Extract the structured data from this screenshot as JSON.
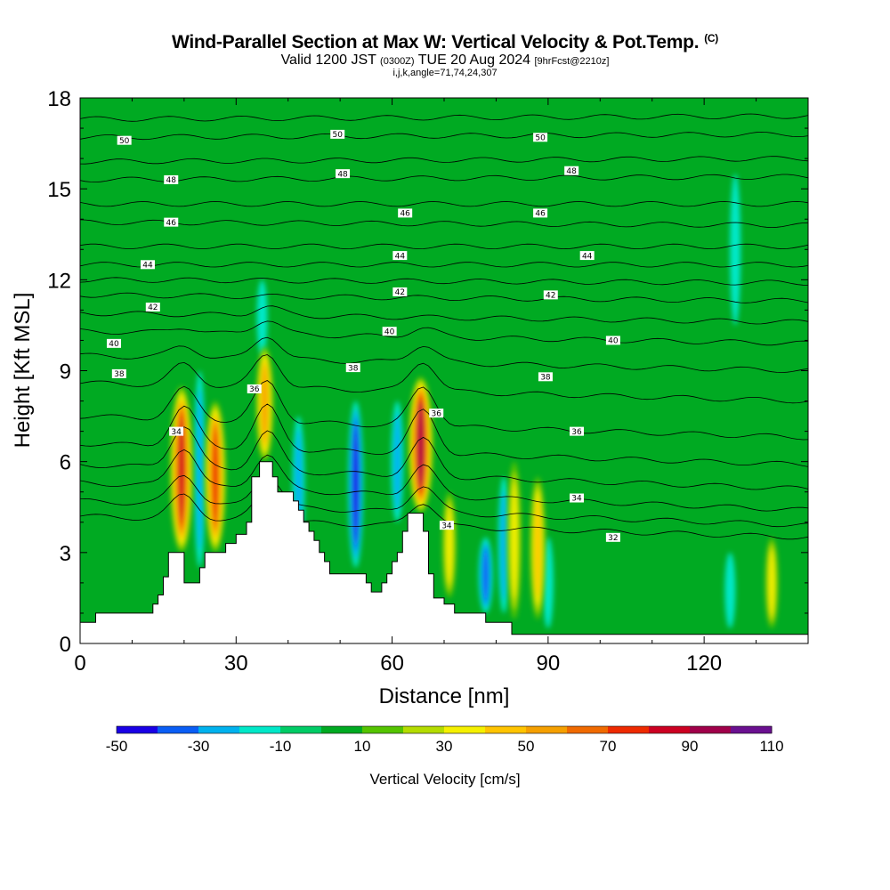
{
  "title": {
    "main": "Wind-Parallel Section at Max W: Vertical Velocity & Pot.Temp.",
    "main_unit": "(C)",
    "valid_prefix": "Valid 1200 JST",
    "valid_zulu": "(0300Z)",
    "valid_date": "TUE 20 Aug 2024",
    "forecast": "[9hrFcst@2210z]",
    "indices": "i,j,k,angle=71,74,24,307"
  },
  "chart_data": {
    "type": "heatmap",
    "xlabel": "Distance [nm]",
    "ylabel": "Height [Kft MSL]",
    "xlim": [
      0,
      140
    ],
    "ylim": [
      0,
      18
    ],
    "x_ticks": [
      "0",
      "30",
      "60",
      "90",
      "120"
    ],
    "x_tick_values": [
      0,
      30,
      60,
      90,
      120
    ],
    "y_ticks": [
      "0",
      "3",
      "6",
      "9",
      "12",
      "15",
      "18"
    ],
    "y_tick_values": [
      0,
      3,
      6,
      9,
      12,
      15,
      18
    ],
    "background_value": 5,
    "updrafts": [
      {
        "x": 19.5,
        "z_bottom": 3.0,
        "z_top": 8.5,
        "peak": 90
      },
      {
        "x": 26.0,
        "z_bottom": 3.0,
        "z_top": 8.0,
        "peak": 80
      },
      {
        "x": 35.5,
        "z_bottom": 6.0,
        "z_top": 9.8,
        "peak": 60
      },
      {
        "x": 65.5,
        "z_bottom": 4.3,
        "z_top": 8.8,
        "peak": 100
      },
      {
        "x": 71.0,
        "z_bottom": 1.5,
        "z_top": 5.0,
        "peak": 40
      },
      {
        "x": 83.5,
        "z_bottom": 0.8,
        "z_top": 6.0,
        "peak": 40
      },
      {
        "x": 88.0,
        "z_bottom": 0.8,
        "z_top": 5.5,
        "peak": 50
      },
      {
        "x": 133.0,
        "z_bottom": 0.5,
        "z_top": 3.5,
        "peak": 35
      }
    ],
    "downdrafts": [
      {
        "x": 23.0,
        "z_bottom": 2.5,
        "z_top": 9.0,
        "peak": -25
      },
      {
        "x": 35.0,
        "z_bottom": 9.5,
        "z_top": 12.0,
        "peak": -20
      },
      {
        "x": 42.0,
        "z_bottom": 3.0,
        "z_top": 7.5,
        "peak": -30
      },
      {
        "x": 53.0,
        "z_bottom": 2.5,
        "z_top": 8.0,
        "peak": -45
      },
      {
        "x": 61.0,
        "z_bottom": 4.0,
        "z_top": 8.0,
        "peak": -30
      },
      {
        "x": 78.0,
        "z_bottom": 1.0,
        "z_top": 3.5,
        "peak": -40
      },
      {
        "x": 81.5,
        "z_bottom": 1.0,
        "z_top": 5.5,
        "peak": -25
      },
      {
        "x": 90.0,
        "z_bottom": 0.5,
        "z_top": 3.5,
        "peak": -15
      },
      {
        "x": 125.0,
        "z_bottom": 0.5,
        "z_top": 3.0,
        "peak": -15
      },
      {
        "x": 126.0,
        "z_bottom": 10.5,
        "z_top": 15.5,
        "peak": -15
      }
    ],
    "terrain": [
      {
        "x": 0,
        "z": 0.7
      },
      {
        "x": 3,
        "z": 0.7
      },
      {
        "x": 3,
        "z": 1.0
      },
      {
        "x": 14,
        "z": 1.0
      },
      {
        "x": 14,
        "z": 1.3
      },
      {
        "x": 15,
        "z": 1.3
      },
      {
        "x": 15,
        "z": 1.6
      },
      {
        "x": 16,
        "z": 1.6
      },
      {
        "x": 16,
        "z": 2.2
      },
      {
        "x": 17,
        "z": 2.2
      },
      {
        "x": 17,
        "z": 3.0
      },
      {
        "x": 20,
        "z": 3.0
      },
      {
        "x": 20,
        "z": 2.0
      },
      {
        "x": 23,
        "z": 2.0
      },
      {
        "x": 23,
        "z": 2.5
      },
      {
        "x": 24,
        "z": 2.5
      },
      {
        "x": 24,
        "z": 3.0
      },
      {
        "x": 28,
        "z": 3.0
      },
      {
        "x": 28,
        "z": 3.3
      },
      {
        "x": 30,
        "z": 3.3
      },
      {
        "x": 30,
        "z": 3.6
      },
      {
        "x": 32,
        "z": 3.6
      },
      {
        "x": 32,
        "z": 4.0
      },
      {
        "x": 33,
        "z": 4.0
      },
      {
        "x": 33,
        "z": 5.5
      },
      {
        "x": 34.5,
        "z": 5.5
      },
      {
        "x": 34.5,
        "z": 6.0
      },
      {
        "x": 37,
        "z": 6.0
      },
      {
        "x": 37,
        "z": 5.5
      },
      {
        "x": 38,
        "z": 5.5
      },
      {
        "x": 38,
        "z": 5.0
      },
      {
        "x": 41,
        "z": 5.0
      },
      {
        "x": 41,
        "z": 4.7
      },
      {
        "x": 42,
        "z": 4.7
      },
      {
        "x": 42,
        "z": 4.4
      },
      {
        "x": 43,
        "z": 4.4
      },
      {
        "x": 43,
        "z": 4.0
      },
      {
        "x": 44,
        "z": 4.0
      },
      {
        "x": 44,
        "z": 3.7
      },
      {
        "x": 45,
        "z": 3.7
      },
      {
        "x": 45,
        "z": 3.4
      },
      {
        "x": 46,
        "z": 3.4
      },
      {
        "x": 46,
        "z": 3.0
      },
      {
        "x": 47,
        "z": 3.0
      },
      {
        "x": 47,
        "z": 2.7
      },
      {
        "x": 48,
        "z": 2.7
      },
      {
        "x": 48,
        "z": 2.3
      },
      {
        "x": 55,
        "z": 2.3
      },
      {
        "x": 55,
        "z": 2.0
      },
      {
        "x": 56,
        "z": 2.0
      },
      {
        "x": 56,
        "z": 1.7
      },
      {
        "x": 58,
        "z": 1.7
      },
      {
        "x": 58,
        "z": 2.0
      },
      {
        "x": 59,
        "z": 2.0
      },
      {
        "x": 59,
        "z": 2.3
      },
      {
        "x": 60,
        "z": 2.3
      },
      {
        "x": 60,
        "z": 2.7
      },
      {
        "x": 61,
        "z": 2.7
      },
      {
        "x": 61,
        "z": 3.0
      },
      {
        "x": 62,
        "z": 3.0
      },
      {
        "x": 62,
        "z": 3.7
      },
      {
        "x": 63,
        "z": 3.7
      },
      {
        "x": 63,
        "z": 4.3
      },
      {
        "x": 66,
        "z": 4.3
      },
      {
        "x": 66,
        "z": 3.7
      },
      {
        "x": 67,
        "z": 3.7
      },
      {
        "x": 67,
        "z": 2.3
      },
      {
        "x": 68,
        "z": 2.3
      },
      {
        "x": 68,
        "z": 1.5
      },
      {
        "x": 70,
        "z": 1.5
      },
      {
        "x": 70,
        "z": 1.3
      },
      {
        "x": 72,
        "z": 1.3
      },
      {
        "x": 72,
        "z": 1.0
      },
      {
        "x": 78,
        "z": 1.0
      },
      {
        "x": 78,
        "z": 0.7
      },
      {
        "x": 83,
        "z": 0.7
      },
      {
        "x": 83,
        "z": 0.3
      },
      {
        "x": 140,
        "z": 0.3
      }
    ],
    "isentropes": [
      {
        "value": 32,
        "z_left": 4.2,
        "z_right": 3.5,
        "bumps": [
          [
            20,
            0.8
          ],
          [
            36,
            1.0
          ],
          [
            66,
            0.8
          ]
        ]
      },
      {
        "value": 33,
        "z_left": 4.7,
        "z_right": 3.9,
        "bumps": [
          [
            20,
            1.0
          ],
          [
            36,
            1.1
          ],
          [
            66,
            0.9
          ]
        ]
      },
      {
        "value": 34,
        "z_left": 5.3,
        "z_right": 4.4,
        "bumps": [
          [
            20,
            1.3
          ],
          [
            36,
            1.2
          ],
          [
            66,
            1.0
          ]
        ]
      },
      {
        "value": 35,
        "z_left": 5.9,
        "z_right": 5.1,
        "bumps": [
          [
            20,
            1.4
          ],
          [
            36,
            1.3
          ],
          [
            66,
            1.2
          ]
        ]
      },
      {
        "value": 36,
        "z_left": 6.6,
        "z_right": 5.9,
        "bumps": [
          [
            20,
            1.3
          ],
          [
            36,
            1.4
          ],
          [
            66,
            1.4
          ]
        ]
      },
      {
        "value": 37,
        "z_left": 7.5,
        "z_right": 6.8,
        "bumps": [
          [
            20,
            1.0
          ],
          [
            36,
            1.3
          ],
          [
            66,
            1.3
          ]
        ]
      },
      {
        "value": 38,
        "z_left": 8.6,
        "z_right": 8.0,
        "bumps": [
          [
            20,
            0.7
          ],
          [
            36,
            1.1
          ],
          [
            66,
            1.0
          ]
        ]
      },
      {
        "value": 39,
        "z_left": 9.5,
        "z_right": 9.0,
        "bumps": [
          [
            20,
            0.4
          ],
          [
            36,
            0.8
          ],
          [
            66,
            0.6
          ]
        ]
      },
      {
        "value": 40,
        "z_left": 10.3,
        "z_right": 9.9,
        "bumps": [
          [
            20,
            0.2
          ],
          [
            36,
            0.5
          ],
          [
            66,
            0.3
          ]
        ]
      },
      {
        "value": 41,
        "z_left": 10.9,
        "z_right": 10.6,
        "bumps": [
          [
            36,
            0.3
          ]
        ]
      },
      {
        "value": 42,
        "z_left": 11.5,
        "z_right": 11.3,
        "bumps": []
      },
      {
        "value": 43,
        "z_left": 12.0,
        "z_right": 11.9,
        "bumps": []
      },
      {
        "value": 44,
        "z_left": 12.5,
        "z_right": 12.5,
        "bumps": []
      },
      {
        "value": 45,
        "z_left": 13.1,
        "z_right": 13.1,
        "bumps": []
      },
      {
        "value": 46,
        "z_left": 13.9,
        "z_right": 13.8,
        "bumps": []
      },
      {
        "value": 47,
        "z_left": 14.5,
        "z_right": 14.5,
        "bumps": []
      },
      {
        "value": 48,
        "z_left": 15.3,
        "z_right": 15.4,
        "bumps": []
      },
      {
        "value": 49,
        "z_left": 15.9,
        "z_right": 16.0,
        "bumps": []
      },
      {
        "value": 50,
        "z_left": 16.7,
        "z_right": 16.8,
        "bumps": []
      },
      {
        "value": 51,
        "z_left": 17.3,
        "z_right": 17.4,
        "bumps": []
      }
    ],
    "contour_labels": [
      {
        "text": "50",
        "x": 8.5,
        "z": 16.6
      },
      {
        "text": "50",
        "x": 49.5,
        "z": 16.8
      },
      {
        "text": "50",
        "x": 88.5,
        "z": 16.7
      },
      {
        "text": "48",
        "x": 17.5,
        "z": 15.3
      },
      {
        "text": "48",
        "x": 50.5,
        "z": 15.5
      },
      {
        "text": "48",
        "x": 94.5,
        "z": 15.6
      },
      {
        "text": "46",
        "x": 17.5,
        "z": 13.9
      },
      {
        "text": "46",
        "x": 62.5,
        "z": 14.2
      },
      {
        "text": "46",
        "x": 88.5,
        "z": 14.2
      },
      {
        "text": "44",
        "x": 13.0,
        "z": 12.5
      },
      {
        "text": "44",
        "x": 61.5,
        "z": 12.8
      },
      {
        "text": "44",
        "x": 97.5,
        "z": 12.8
      },
      {
        "text": "42",
        "x": 14.0,
        "z": 11.1
      },
      {
        "text": "42",
        "x": 61.5,
        "z": 11.6
      },
      {
        "text": "42",
        "x": 90.5,
        "z": 11.5
      },
      {
        "text": "40",
        "x": 6.5,
        "z": 9.9
      },
      {
        "text": "40",
        "x": 59.5,
        "z": 10.3
      },
      {
        "text": "40",
        "x": 102.5,
        "z": 10.0
      },
      {
        "text": "38",
        "x": 7.5,
        "z": 8.9
      },
      {
        "text": "38",
        "x": 52.5,
        "z": 9.1
      },
      {
        "text": "38",
        "x": 89.5,
        "z": 8.8
      },
      {
        "text": "36",
        "x": 33.5,
        "z": 8.4
      },
      {
        "text": "36",
        "x": 68.5,
        "z": 7.6
      },
      {
        "text": "36",
        "x": 95.5,
        "z": 7.0
      },
      {
        "text": "34",
        "x": 18.5,
        "z": 7.0
      },
      {
        "text": "34",
        "x": 70.5,
        "z": 3.9
      },
      {
        "text": "34",
        "x": 95.5,
        "z": 4.8
      },
      {
        "text": "32",
        "x": 102.5,
        "z": 3.5
      }
    ]
  },
  "colorbar": {
    "title": "Vertical Velocity [cm/s]",
    "tick_labels": [
      "-50",
      "-30",
      "-10",
      "10",
      "30",
      "50",
      "70",
      "90",
      "110"
    ],
    "tick_values": [
      -50,
      -30,
      -10,
      10,
      30,
      50,
      70,
      90,
      110
    ],
    "levels": [
      -50,
      -40,
      -30,
      -20,
      -10,
      0,
      10,
      20,
      30,
      40,
      50,
      60,
      70,
      80,
      90,
      100,
      110
    ],
    "colors": [
      "#1a00e6",
      "#0a5ef5",
      "#00b2ee",
      "#00e8c8",
      "#00cc66",
      "#00aa22",
      "#55c400",
      "#b4dc00",
      "#f5f000",
      "#ffc400",
      "#f5a000",
      "#f06a00",
      "#ee2a00",
      "#cc0022",
      "#a0004a",
      "#6a1090"
    ]
  }
}
